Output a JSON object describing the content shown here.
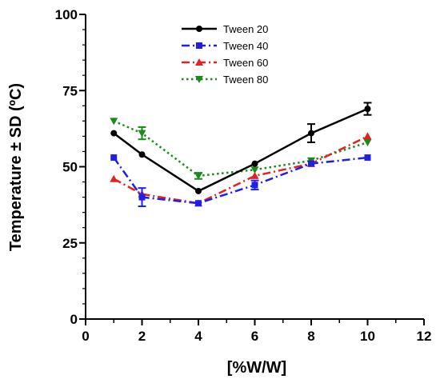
{
  "chart_data": {
    "type": "line",
    "xlabel": "[%W/W]",
    "ylabel": "Temperature ± SD  (ºC)",
    "xlim": [
      0,
      12
    ],
    "ylim": [
      0,
      100
    ],
    "xticks": [
      0,
      2,
      4,
      6,
      8,
      10,
      12
    ],
    "yticks": [
      0,
      25,
      50,
      75,
      100
    ],
    "grid": false,
    "legend_position": "top-center",
    "series": [
      {
        "name": "Tween 20",
        "color": "#000000",
        "marker": "circle",
        "line": "solid",
        "x": [
          1,
          2,
          4,
          6,
          8,
          10
        ],
        "y": [
          61,
          54,
          42,
          51,
          61,
          69
        ],
        "err": [
          0,
          0,
          0,
          0,
          3,
          2
        ]
      },
      {
        "name": "Tween 40",
        "color": "#1f1fe6",
        "marker": "square",
        "line": "dashdot",
        "x": [
          1,
          2,
          4,
          6,
          8,
          10
        ],
        "y": [
          53,
          40,
          38,
          44,
          51,
          53
        ],
        "err": [
          0,
          3,
          0,
          1.5,
          0,
          0
        ]
      },
      {
        "name": "Tween 60",
        "color": "#e61f1f",
        "marker": "triangle-up",
        "line": "dashdot",
        "x": [
          1,
          2,
          4,
          6,
          8,
          10
        ],
        "y": [
          46,
          41,
          38,
          47,
          51,
          60
        ],
        "err": [
          0,
          0,
          0,
          0,
          0,
          0
        ]
      },
      {
        "name": "Tween 80",
        "color": "#1a8a1a",
        "marker": "triangle-down",
        "line": "dotted",
        "x": [
          1,
          2,
          4,
          6,
          8,
          10
        ],
        "y": [
          65,
          61,
          47,
          49,
          52,
          58
        ],
        "err": [
          0,
          2,
          1,
          0,
          0,
          0
        ]
      }
    ]
  }
}
